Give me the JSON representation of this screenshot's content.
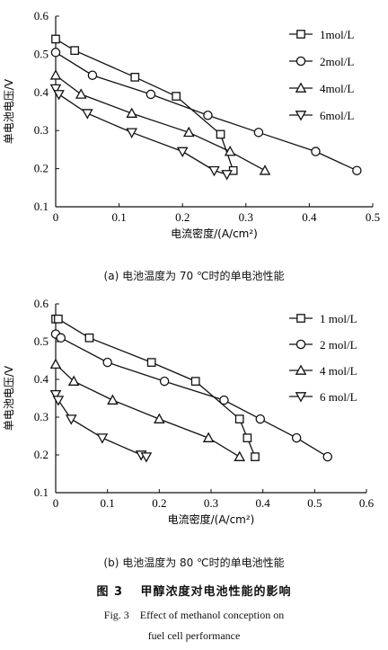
{
  "chart_data": [
    {
      "type": "line",
      "panel": "a",
      "xlabel": "电流密度/(A/cm²)",
      "ylabel": "单电池电压/V",
      "xlim": [
        0,
        0.5
      ],
      "ylim": [
        0.1,
        0.6
      ],
      "xticks": [
        "0",
        "0.1",
        "0.2",
        "0.3",
        "0.4",
        "0.5"
      ],
      "yticks": [
        "0.1",
        "0.2",
        "0.3",
        "0.4",
        "0.5",
        "0.6"
      ],
      "legend_position": "top-right",
      "series": [
        {
          "name": "1mol/L",
          "marker": "square",
          "x": [
            0,
            0.03,
            0.125,
            0.19,
            0.26,
            0.28
          ],
          "y": [
            0.54,
            0.51,
            0.44,
            0.39,
            0.29,
            0.195
          ]
        },
        {
          "name": "2mol/L",
          "marker": "circle",
          "x": [
            0,
            0.058,
            0.15,
            0.24,
            0.32,
            0.41,
            0.475
          ],
          "y": [
            0.505,
            0.445,
            0.395,
            0.34,
            0.295,
            0.245,
            0.195
          ]
        },
        {
          "name": "4mol/L",
          "marker": "triangle-up",
          "x": [
            0,
            0.04,
            0.12,
            0.21,
            0.275,
            0.33
          ],
          "y": [
            0.445,
            0.395,
            0.345,
            0.295,
            0.245,
            0.195
          ]
        },
        {
          "name": "6mol/L",
          "marker": "triangle-down",
          "x": [
            0,
            0.005,
            0.05,
            0.12,
            0.2,
            0.25,
            0.27
          ],
          "y": [
            0.41,
            0.395,
            0.345,
            0.295,
            0.245,
            0.195,
            0.185
          ]
        }
      ]
    },
    {
      "type": "line",
      "panel": "b",
      "xlabel": "电流密度/(A/cm²)",
      "ylabel": "单电池电压/V",
      "xlim": [
        0,
        0.6
      ],
      "ylim": [
        0.1,
        0.6
      ],
      "xticks": [
        "0",
        "0.1",
        "0.2",
        "0.3",
        "0.4",
        "0.5",
        "0.6"
      ],
      "yticks": [
        "0.1",
        "0.2",
        "0.3",
        "0.4",
        "0.5",
        "0.6"
      ],
      "legend_position": "top-right",
      "series": [
        {
          "name": "1 mol/L",
          "marker": "square",
          "x": [
            0,
            0.005,
            0.065,
            0.185,
            0.27,
            0.355,
            0.37,
            0.385
          ],
          "y": [
            0.56,
            0.56,
            0.51,
            0.445,
            0.395,
            0.295,
            0.245,
            0.195
          ]
        },
        {
          "name": "2 mol/L",
          "marker": "circle",
          "x": [
            0,
            0.01,
            0.1,
            0.21,
            0.325,
            0.395,
            0.465,
            0.525
          ],
          "y": [
            0.52,
            0.51,
            0.445,
            0.395,
            0.345,
            0.295,
            0.245,
            0.195
          ]
        },
        {
          "name": "4 mol/L",
          "marker": "triangle-up",
          "x": [
            0,
            0.035,
            0.11,
            0.2,
            0.295,
            0.355
          ],
          "y": [
            0.44,
            0.395,
            0.345,
            0.295,
            0.245,
            0.195
          ]
        },
        {
          "name": "6 mol/L",
          "marker": "triangle-down",
          "x": [
            0,
            0.005,
            0.03,
            0.09,
            0.165,
            0.175
          ],
          "y": [
            0.36,
            0.345,
            0.295,
            0.245,
            0.2,
            0.195
          ]
        }
      ]
    }
  ],
  "captions": {
    "a": "(a) 电池温度为 70 ℃时的单电池性能",
    "b": "(b) 电池温度为 80 ℃时的单电池性能",
    "figure_title": "图 3　 甲醇浓度对电池性能的影响",
    "figure_title_en_1": "Fig. 3　Effect of methanol conception on",
    "figure_title_en_2": "fuel cell performance"
  }
}
